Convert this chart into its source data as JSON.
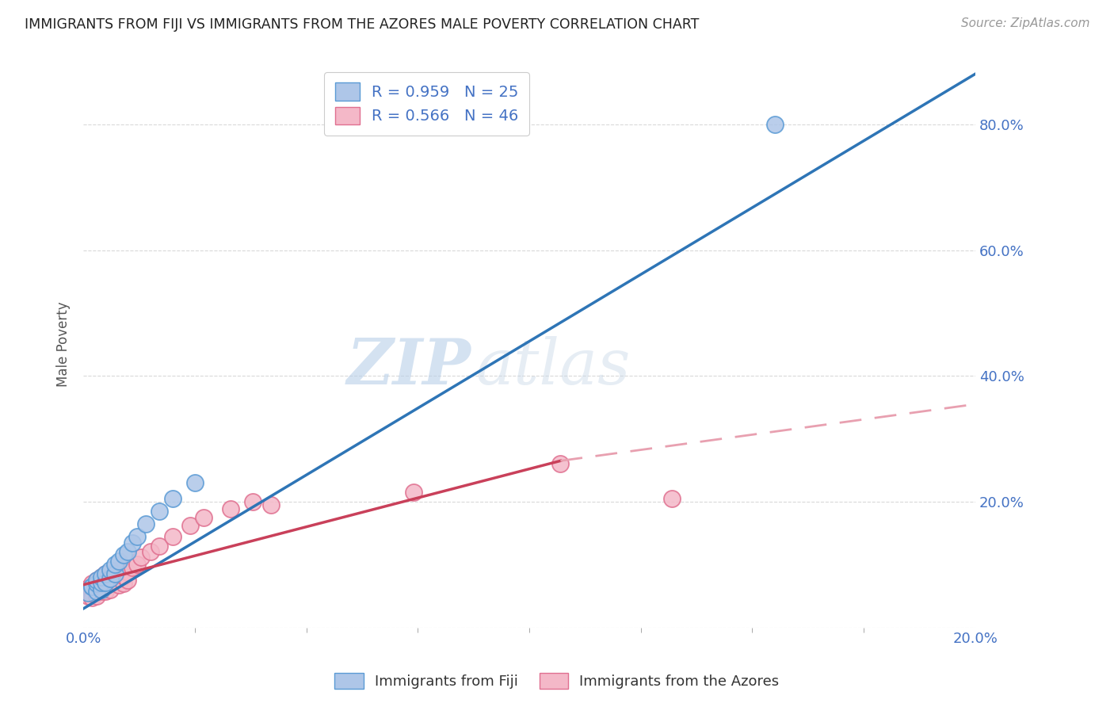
{
  "title": "IMMIGRANTS FROM FIJI VS IMMIGRANTS FROM THE AZORES MALE POVERTY CORRELATION CHART",
  "source": "Source: ZipAtlas.com",
  "ylabel": "Male Poverty",
  "xlim": [
    0.0,
    0.2
  ],
  "ylim": [
    0.0,
    0.9
  ],
  "ytick_vals": [
    0.0,
    0.2,
    0.4,
    0.6,
    0.8
  ],
  "xtick_vals": [
    0.0,
    0.2
  ],
  "xtick_labels": [
    "0.0%",
    "20.0%"
  ],
  "ytick_labels_right": [
    "",
    "20.0%",
    "40.0%",
    "60.0%",
    "80.0%"
  ],
  "fiji_color": "#aec6e8",
  "fiji_edge_color": "#5b9bd5",
  "azores_color": "#f4b8c8",
  "azores_edge_color": "#e07090",
  "fiji_line_color": "#2e75b6",
  "azores_line_color": "#c9405a",
  "azores_dashed_color": "#e8a0b0",
  "legend_text_color": "#4472c4",
  "fiji_R": 0.959,
  "fiji_N": 25,
  "azores_R": 0.566,
  "azores_N": 46,
  "fiji_line_x0": 0.0,
  "fiji_line_y0": 0.03,
  "fiji_line_x1": 0.2,
  "fiji_line_y1": 0.88,
  "azores_line_x0": 0.0,
  "azores_line_y0": 0.068,
  "azores_line_solid_x1": 0.107,
  "azores_line_solid_y1": 0.265,
  "azores_line_dashed_x1": 0.2,
  "azores_line_dashed_y1": 0.355,
  "fiji_scatter_x": [
    0.001,
    0.002,
    0.002,
    0.003,
    0.003,
    0.003,
    0.004,
    0.004,
    0.004,
    0.005,
    0.005,
    0.006,
    0.006,
    0.007,
    0.007,
    0.008,
    0.009,
    0.01,
    0.011,
    0.012,
    0.014,
    0.017,
    0.02,
    0.025,
    0.155
  ],
  "fiji_scatter_y": [
    0.055,
    0.065,
    0.065,
    0.058,
    0.07,
    0.075,
    0.06,
    0.072,
    0.08,
    0.072,
    0.085,
    0.078,
    0.092,
    0.085,
    0.1,
    0.105,
    0.115,
    0.12,
    0.135,
    0.145,
    0.165,
    0.185,
    0.205,
    0.23,
    0.8
  ],
  "azores_scatter_x": [
    0.001,
    0.001,
    0.001,
    0.002,
    0.002,
    0.002,
    0.002,
    0.002,
    0.003,
    0.003,
    0.003,
    0.003,
    0.004,
    0.004,
    0.004,
    0.004,
    0.005,
    0.005,
    0.005,
    0.005,
    0.006,
    0.006,
    0.006,
    0.007,
    0.007,
    0.008,
    0.008,
    0.008,
    0.009,
    0.009,
    0.01,
    0.01,
    0.011,
    0.012,
    0.013,
    0.015,
    0.017,
    0.02,
    0.024,
    0.027,
    0.033,
    0.038,
    0.042,
    0.074,
    0.107,
    0.132
  ],
  "azores_scatter_y": [
    0.055,
    0.062,
    0.05,
    0.058,
    0.065,
    0.055,
    0.07,
    0.048,
    0.06,
    0.068,
    0.075,
    0.05,
    0.062,
    0.072,
    0.058,
    0.08,
    0.065,
    0.075,
    0.058,
    0.085,
    0.07,
    0.08,
    0.06,
    0.075,
    0.088,
    0.078,
    0.068,
    0.092,
    0.07,
    0.082,
    0.088,
    0.075,
    0.095,
    0.1,
    0.112,
    0.12,
    0.13,
    0.145,
    0.162,
    0.175,
    0.188,
    0.2,
    0.195,
    0.215,
    0.26,
    0.205
  ],
  "watermark_zip": "ZIP",
  "watermark_atlas": "atlas",
  "background_color": "#ffffff",
  "grid_color": "#d9d9d9"
}
